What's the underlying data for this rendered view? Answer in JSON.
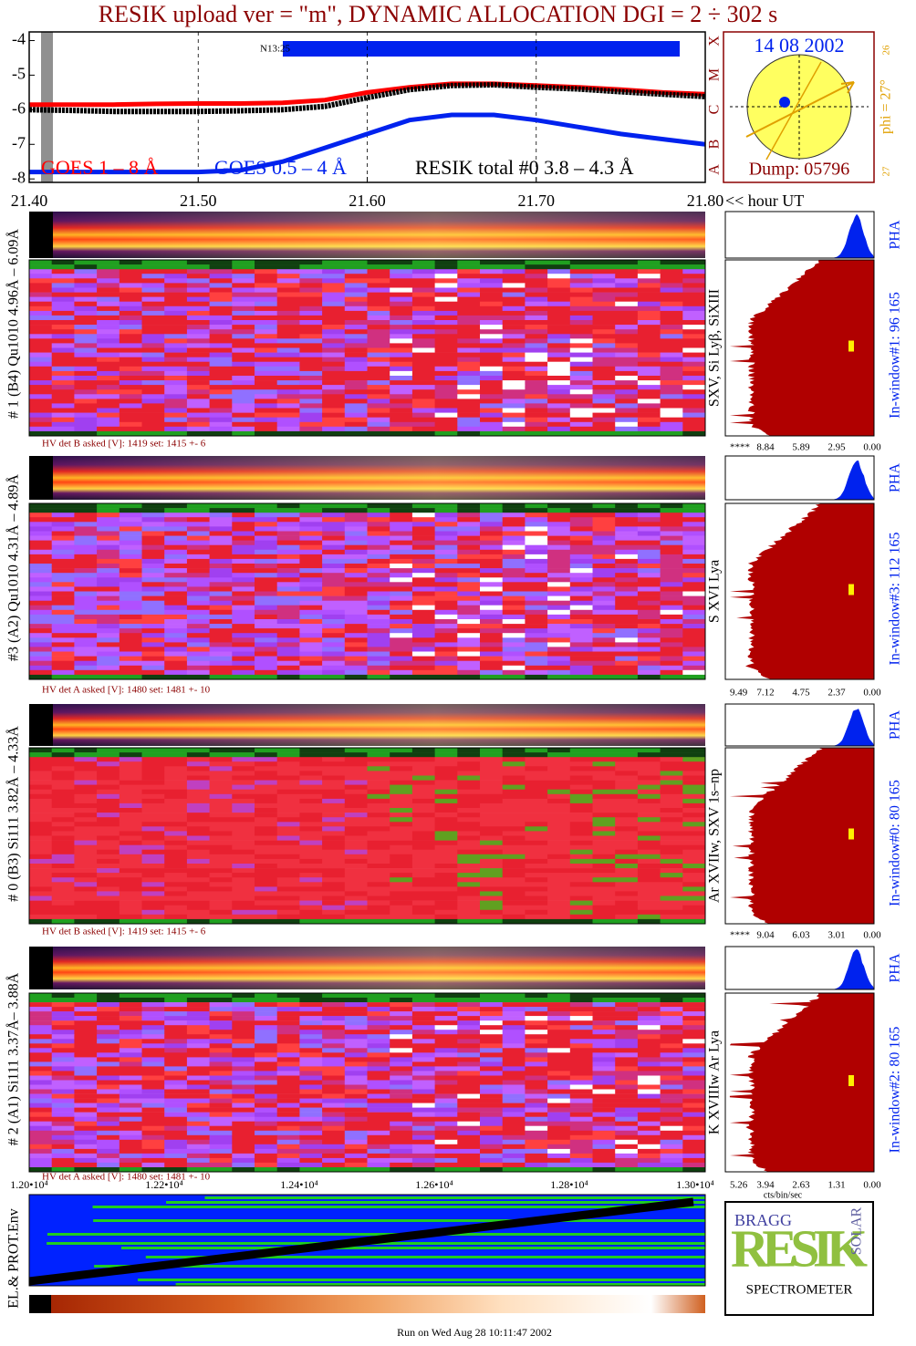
{
  "title": "RESIK upload ver = \"m\", DYNAMIC ALLOCATION  DGI =   2 ÷ 302 s",
  "chart_data": {
    "type": "line",
    "x": [
      21.4,
      21.425,
      21.45,
      21.475,
      21.5,
      21.525,
      21.55,
      21.575,
      21.6,
      21.625,
      21.65,
      21.675,
      21.7,
      21.725,
      21.75,
      21.775,
      21.8
    ],
    "series": [
      {
        "name": "GOES 1 – 8 Å",
        "color": "#ff0000",
        "values": [
          -5.85,
          -5.85,
          -5.85,
          -5.83,
          -5.82,
          -5.82,
          -5.8,
          -5.72,
          -5.5,
          -5.35,
          -5.25,
          -5.25,
          -5.3,
          -5.35,
          -5.42,
          -5.5,
          -5.55
        ]
      },
      {
        "name": "GOES 0.5 – 4 Å",
        "color": "#0022ee",
        "values": [
          -7.8,
          -7.8,
          -7.8,
          -7.8,
          -7.8,
          -7.75,
          -7.5,
          -7.1,
          -6.7,
          -6.3,
          -6.15,
          -6.15,
          -6.3,
          -6.5,
          -6.7,
          -6.85,
          -7.0
        ]
      },
      {
        "name": "RESIK total #0  3.8 – 4.3 Å",
        "color": "#000000",
        "values": [
          -6.0,
          -6.02,
          -6.05,
          -6.05,
          -6.05,
          -6.03,
          -6.0,
          -5.9,
          -5.65,
          -5.42,
          -5.3,
          -5.28,
          -5.35,
          -5.4,
          -5.48,
          -5.55,
          -5.62
        ]
      }
    ],
    "xlim": [
      21.4,
      21.8
    ],
    "ylim": [
      -8.1,
      -3.75
    ],
    "xticks": [
      {
        "value": 21.4,
        "label": "21.40"
      },
      {
        "value": 21.5,
        "label": "21.50"
      },
      {
        "value": 21.6,
        "label": "21.60"
      },
      {
        "value": 21.7,
        "label": "21.70"
      },
      {
        "value": 21.8,
        "label": "21.80"
      }
    ],
    "yticks": [
      -4,
      -5,
      -6,
      -7,
      -8
    ],
    "x_label": "<< hour UT",
    "class_labels": [
      "A",
      "B",
      "C",
      "M",
      "X"
    ],
    "annotation": "N13:25",
    "grid": true
  },
  "sun": {
    "date": "14 08 2002",
    "dump": "Dump: 05796",
    "phi": "phi = 27°",
    "top_number": "26",
    "bottom_number": "27"
  },
  "panels": [
    {
      "label": "# 1 (B4) Qu1010 4.96Å – 6.09Å",
      "lines": "SXV, Si Lyβ, SiXIII",
      "window": "In-window#1:  96 165",
      "pha": "PHA",
      "hv": "HV det B asked [V]:  1419 set:  1415  +-    6",
      "hist_ticks": [
        "****",
        "8.84",
        "5.89",
        "2.95",
        "0.00"
      ]
    },
    {
      "label": "#3 (A2) Qu1010  4.31Å – 4.89Å",
      "lines": "S XVI Lya",
      "window": "In-window#3:  112 165",
      "pha": "PHA",
      "hv": "HV det A asked [V]:  1480 set:  1481  +-    10",
      "hist_ticks": [
        "9.49",
        "7.12",
        "4.75",
        "2.37",
        "0.00"
      ]
    },
    {
      "label": "# 0 (B3) Si111  3.82Å – 4.33Å",
      "lines": "Ar XVIIw,  SXV 1s–np",
      "window": "In-window#0:   80 165",
      "pha": "PHA",
      "hv": "HV det B asked [V]:  1419 set:  1415  +-    6",
      "hist_ticks": [
        "****",
        "9.04",
        "6.03",
        "3.01",
        "0.00"
      ]
    },
    {
      "label": "# 2 (A1) Si111  3.37Å– 3.88Å",
      "lines": "K XVIIIw  Ar Lya",
      "window": "In-window#2:   80 165",
      "pha": "PHA",
      "hv": "HV det A asked [V]:  1480 set:  1481  +-    10",
      "hist_ticks": [
        "5.26",
        "3.94",
        "2.63",
        "1.31",
        "0.00"
      ]
    }
  ],
  "bottom_axis": [
    "1.20•10⁴",
    "1.22•10⁴",
    "1.24•10⁴",
    "1.26•10⁴",
    "1.28•10⁴",
    "1.30•10⁴"
  ],
  "cts_label": "cts/bin/sec",
  "env_label": "EL.& PROT.Env",
  "logo": {
    "top": "BRAGG",
    "main": "RESIK",
    "side": "SOLAR",
    "bottom": "SPECTROMETER"
  },
  "footer": "Run on Wed Aug 28 10:11:47 2002"
}
